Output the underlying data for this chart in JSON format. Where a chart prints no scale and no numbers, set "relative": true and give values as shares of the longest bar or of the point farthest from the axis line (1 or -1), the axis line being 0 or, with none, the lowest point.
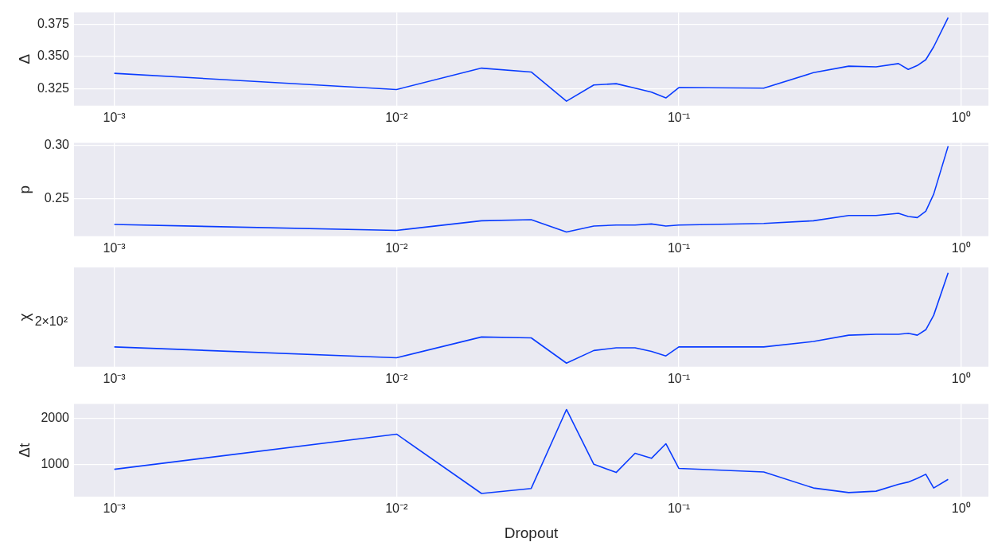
{
  "chart_data": [
    {
      "type": "line",
      "ylabel": "Δ",
      "x": [
        0.001,
        0.01,
        0.02,
        0.03,
        0.04,
        0.05,
        0.06,
        0.07,
        0.08,
        0.09,
        0.1,
        0.2,
        0.3,
        0.4,
        0.5,
        0.6,
        0.65,
        0.7,
        0.75,
        0.8,
        0.9
      ],
      "series": [
        {
          "color": "#0a3cff",
          "values": [
            0.337,
            0.3245,
            0.341,
            0.338,
            0.3155,
            0.328,
            0.329,
            0.3255,
            0.3225,
            0.318,
            0.326,
            0.3255,
            0.3375,
            0.3425,
            0.342,
            0.3445,
            0.34,
            0.343,
            0.3475,
            0.3575,
            0.38
          ]
        }
      ],
      "xlim": [
        0.00072,
        1.25
      ],
      "xticks": [
        {
          "value": 0.001,
          "label": "10⁻³"
        },
        {
          "value": 0.01,
          "label": "10⁻²"
        },
        {
          "value": 0.1,
          "label": "10⁻¹"
        },
        {
          "value": 1,
          "label": "10⁰"
        }
      ],
      "ylim": [
        0.312,
        0.384
      ],
      "yticks": [
        {
          "value": 0.325,
          "label": "0.325"
        },
        {
          "value": 0.35,
          "label": "0.350"
        },
        {
          "value": 0.375,
          "label": "0.375"
        }
      ],
      "log": "x",
      "grid": true,
      "legend": false,
      "marker": "none"
    },
    {
      "type": "line",
      "ylabel": "p",
      "x": [
        0.001,
        0.01,
        0.02,
        0.03,
        0.04,
        0.05,
        0.06,
        0.07,
        0.08,
        0.09,
        0.1,
        0.2,
        0.3,
        0.4,
        0.5,
        0.6,
        0.65,
        0.7,
        0.75,
        0.8,
        0.9
      ],
      "series": [
        {
          "color": "#0a3cff",
          "values": [
            0.2255,
            0.22,
            0.229,
            0.23,
            0.2185,
            0.224,
            0.225,
            0.225,
            0.226,
            0.224,
            0.225,
            0.2265,
            0.229,
            0.234,
            0.234,
            0.236,
            0.233,
            0.232,
            0.238,
            0.254,
            0.299
          ]
        }
      ],
      "xlim": [
        0.00072,
        1.25
      ],
      "xticks": [
        {
          "value": 0.001,
          "label": "10⁻³"
        },
        {
          "value": 0.01,
          "label": "10⁻²"
        },
        {
          "value": 0.1,
          "label": "10⁻¹"
        },
        {
          "value": 1,
          "label": "10⁰"
        }
      ],
      "ylim": [
        0.2145,
        0.302
      ],
      "yticks": [
        {
          "value": 0.25,
          "label": "0.25"
        },
        {
          "value": 0.3,
          "label": "0.30"
        }
      ],
      "log": "x",
      "grid": true,
      "legend": false,
      "marker": "none"
    },
    {
      "type": "line",
      "ylabel": "χ",
      "relative": true,
      "annotations": [
        "2×10²"
      ],
      "x": [
        0.001,
        0.01,
        0.02,
        0.03,
        0.04,
        0.05,
        0.06,
        0.07,
        0.08,
        0.09,
        0.1,
        0.2,
        0.3,
        0.4,
        0.5,
        0.6,
        0.65,
        0.7,
        0.75,
        0.8,
        0.9
      ],
      "series": [
        {
          "color": "#0a3cff",
          "values": [
            0.18,
            0.06,
            0.29,
            0.28,
            0,
            0.14,
            0.17,
            0.17,
            0.13,
            0.08,
            0.18,
            0.18,
            0.24,
            0.31,
            0.32,
            0.32,
            0.33,
            0.31,
            0.37,
            0.53,
            1
          ]
        }
      ],
      "xlim": [
        0.00072,
        1.25
      ],
      "xticks": [
        {
          "value": 0.001,
          "label": "10⁻³"
        },
        {
          "value": 0.01,
          "label": "10⁻²"
        },
        {
          "value": 0.1,
          "label": "10⁻¹"
        },
        {
          "value": 1,
          "label": "10⁰"
        }
      ],
      "log": "x",
      "grid": "x",
      "legend": false,
      "marker": "none"
    },
    {
      "type": "line",
      "ylabel": "Δt",
      "xlabel": "Dropout",
      "x": [
        0.001,
        0.01,
        0.02,
        0.03,
        0.04,
        0.05,
        0.06,
        0.07,
        0.08,
        0.09,
        0.1,
        0.2,
        0.3,
        0.4,
        0.5,
        0.6,
        0.65,
        0.7,
        0.75,
        0.8,
        0.9
      ],
      "series": [
        {
          "color": "#0a3cff",
          "values": [
            890,
            1660,
            360,
            470,
            2200,
            1000,
            820,
            1240,
            1130,
            1450,
            910,
            830,
            480,
            380,
            410,
            560,
            610,
            690,
            780,
            480,
            670
          ]
        }
      ],
      "xlim": [
        0.00072,
        1.25
      ],
      "xticks": [
        {
          "value": 0.001,
          "label": "10⁻³"
        },
        {
          "value": 0.01,
          "label": "10⁻²"
        },
        {
          "value": 0.1,
          "label": "10⁻¹"
        },
        {
          "value": 1,
          "label": "10⁰"
        }
      ],
      "ylim": [
        290,
        2320
      ],
      "yticks": [
        1000,
        2000
      ],
      "log": "x",
      "grid": true,
      "legend": false,
      "marker": "none"
    }
  ]
}
